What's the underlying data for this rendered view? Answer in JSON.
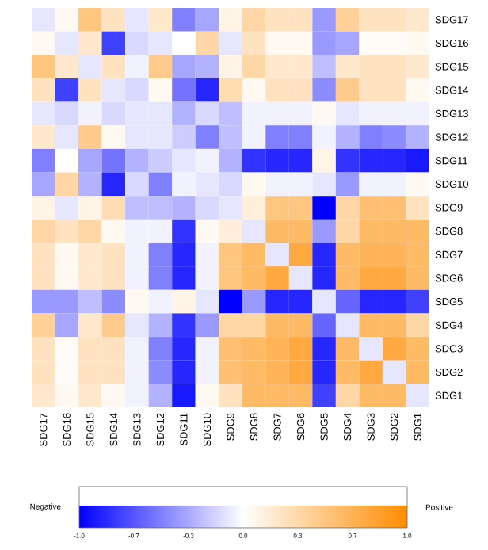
{
  "chart_data": {
    "type": "heatmap",
    "categories": [
      "SDG17",
      "SDG16",
      "SDG15",
      "SDG14",
      "SDG13",
      "SDG12",
      "SDG11",
      "SDG10",
      "SDG9",
      "SDG8",
      "SDG7",
      "SDG6",
      "SDG5",
      "SDG4",
      "SDG3",
      "SDG2",
      "SDG1"
    ],
    "y_categories": [
      "SDG17",
      "SDG16",
      "SDG15",
      "SDG14",
      "SDG13",
      "SDG12",
      "SDG11",
      "SDG10",
      "SDG9",
      "SDG8",
      "SDG7",
      "SDG6",
      "SDG5",
      "SDG4",
      "SDG3",
      "SDG2",
      "SDG1"
    ],
    "cells": [
      [
        -0.1,
        0.05,
        0.5,
        0.25,
        -0.1,
        0.2,
        -0.5,
        -0.35,
        0.1,
        0.35,
        0.25,
        0.25,
        -0.4,
        0.4,
        0.25,
        0.25,
        0.2
      ],
      [
        0.05,
        -0.1,
        0.2,
        -0.75,
        -0.15,
        -0.1,
        0.0,
        0.35,
        -0.1,
        0.25,
        0.05,
        0.05,
        -0.4,
        -0.35,
        0.03,
        0.03,
        0.05
      ],
      [
        0.5,
        0.2,
        -0.1,
        0.25,
        -0.05,
        0.45,
        -0.35,
        -0.3,
        0.1,
        0.35,
        0.2,
        0.2,
        -0.25,
        0.2,
        0.25,
        0.25,
        0.2
      ],
      [
        0.25,
        -0.75,
        0.25,
        -0.1,
        -0.15,
        0.05,
        -0.55,
        -0.85,
        0.3,
        0.05,
        0.25,
        0.25,
        -0.45,
        0.45,
        0.25,
        0.25,
        0.05
      ],
      [
        -0.1,
        -0.15,
        -0.05,
        -0.15,
        -0.1,
        -0.1,
        -0.3,
        -0.15,
        -0.25,
        -0.05,
        -0.05,
        -0.05,
        0.05,
        -0.1,
        -0.05,
        -0.05,
        -0.05
      ],
      [
        0.2,
        -0.1,
        0.45,
        0.05,
        -0.1,
        -0.1,
        -0.2,
        -0.5,
        -0.25,
        -0.05,
        -0.5,
        -0.5,
        -0.05,
        -0.3,
        -0.5,
        -0.45,
        -0.3
      ],
      [
        -0.5,
        0.0,
        -0.35,
        -0.55,
        -0.3,
        -0.2,
        -0.1,
        -0.05,
        -0.3,
        -0.8,
        -0.85,
        -0.85,
        0.1,
        -0.8,
        -0.85,
        -0.85,
        -0.9
      ],
      [
        -0.35,
        0.35,
        -0.3,
        -0.85,
        -0.15,
        -0.5,
        -0.05,
        -0.1,
        -0.15,
        0.05,
        -0.05,
        -0.05,
        -0.1,
        -0.4,
        -0.05,
        -0.05,
        0.05
      ],
      [
        0.1,
        -0.1,
        0.1,
        0.3,
        -0.25,
        -0.25,
        -0.3,
        -0.15,
        -0.1,
        0.15,
        0.5,
        0.5,
        -1.0,
        0.35,
        0.55,
        0.55,
        0.25
      ],
      [
        0.35,
        0.25,
        0.35,
        0.05,
        -0.05,
        -0.05,
        -0.8,
        0.05,
        0.15,
        -0.1,
        0.6,
        0.6,
        -0.4,
        0.35,
        0.6,
        0.6,
        0.6
      ],
      [
        0.25,
        0.05,
        0.2,
        0.25,
        -0.05,
        -0.5,
        -0.85,
        -0.05,
        0.5,
        0.6,
        -0.1,
        0.75,
        -0.85,
        0.6,
        0.65,
        0.65,
        0.6
      ],
      [
        0.25,
        0.05,
        0.2,
        0.25,
        -0.05,
        -0.5,
        -0.85,
        -0.05,
        0.5,
        0.6,
        0.75,
        -0.1,
        -0.85,
        0.6,
        0.75,
        0.75,
        0.6
      ],
      [
        -0.4,
        -0.4,
        -0.25,
        -0.45,
        0.05,
        -0.05,
        0.1,
        -0.1,
        -1.0,
        -0.4,
        -0.85,
        -0.85,
        -0.1,
        -0.6,
        -0.85,
        -0.85,
        -0.75
      ],
      [
        0.4,
        -0.35,
        0.2,
        0.45,
        -0.1,
        -0.3,
        -0.8,
        -0.4,
        0.35,
        0.35,
        0.6,
        0.6,
        -0.6,
        -0.1,
        0.6,
        0.6,
        0.35
      ],
      [
        0.25,
        0.03,
        0.25,
        0.25,
        -0.05,
        -0.5,
        -0.85,
        -0.05,
        0.55,
        0.6,
        0.65,
        0.75,
        -0.85,
        0.6,
        -0.1,
        0.75,
        0.6
      ],
      [
        0.25,
        0.03,
        0.25,
        0.25,
        -0.05,
        -0.45,
        -0.85,
        -0.05,
        0.55,
        0.6,
        0.65,
        0.75,
        -0.85,
        0.6,
        0.75,
        -0.1,
        0.6
      ],
      [
        0.2,
        0.05,
        0.2,
        0.05,
        -0.05,
        -0.3,
        -0.9,
        0.05,
        0.25,
        0.6,
        0.6,
        0.6,
        -0.75,
        0.35,
        0.6,
        0.6,
        -0.1
      ]
    ],
    "clim": [
      -1.0,
      1.0
    ],
    "cticks": [
      {
        "value": -1.0,
        "label": "-1.0"
      },
      {
        "value": -0.667,
        "label": "-0.7"
      },
      {
        "value": -0.333,
        "label": "-0.3"
      },
      {
        "value": 0.0,
        "label": "0.0"
      },
      {
        "value": 0.333,
        "label": "0.3"
      },
      {
        "value": 0.667,
        "label": "0.7"
      },
      {
        "value": 1.0,
        "label": "1.0"
      }
    ],
    "annotations": [
      "Negative",
      "Positive"
    ]
  }
}
